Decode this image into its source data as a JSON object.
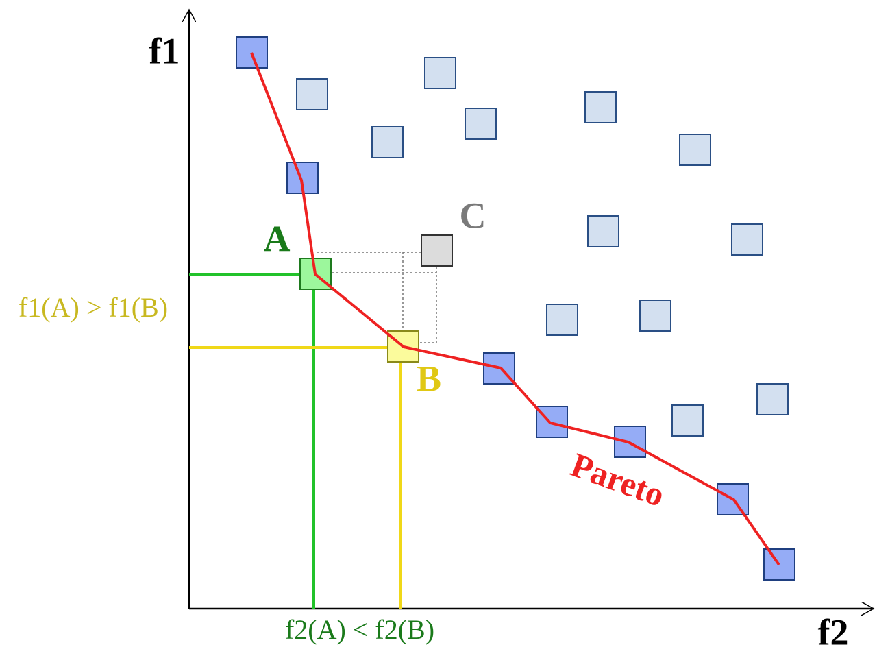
{
  "axes": {
    "y_label": "f1",
    "x_label": "f2"
  },
  "points": {
    "a": "A",
    "b": "B",
    "c": "C"
  },
  "annotations": {
    "f1_compare": "f1(A) > f1(B)",
    "f2_compare": "f2(A) < f2(B)"
  },
  "front_label": "Pareto"
}
